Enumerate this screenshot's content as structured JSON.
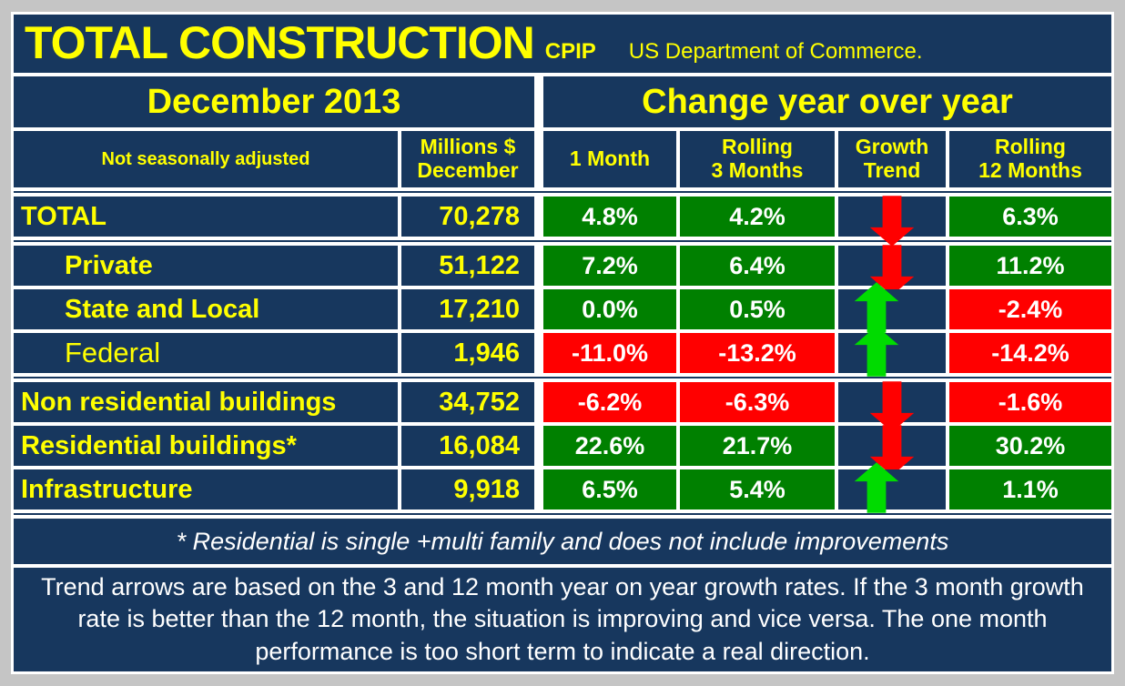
{
  "colors": {
    "background": "#C5C5C5",
    "panel": "#17375E",
    "border": "#FFFFFF",
    "accent_text": "#FFFF00",
    "positive": "#008000",
    "negative": "#FF0000",
    "arrow_up": "#00DB00",
    "arrow_down": "#FF0000",
    "body_text": "#FFFFFF"
  },
  "header": {
    "title": "TOTAL CONSTRUCTION",
    "source_tag": "CPIP",
    "source_org": "US Department of Commerce."
  },
  "sections": {
    "period": "December 2013",
    "change": "Change year over year"
  },
  "columns": {
    "label": "Not seasonally adjusted",
    "millions_line1": "Millions $",
    "millions_line2": "December",
    "m1": "1 Month",
    "r3_line1": "Rolling",
    "r3_line2": "3 Months",
    "trend_line1": "Growth",
    "trend_line2": "Trend",
    "r12_line1": "Rolling",
    "r12_line2": "12 Months"
  },
  "rows": [
    {
      "label": "TOTAL",
      "millions": "70,278",
      "m1": "4.8%",
      "m1_color": "green",
      "r3": "4.2%",
      "r3_color": "green",
      "trend": "down",
      "r12": "6.3%",
      "r12_color": "green"
    },
    {
      "label": "Private",
      "millions": "51,122",
      "m1": "7.2%",
      "m1_color": "green",
      "r3": "6.4%",
      "r3_color": "green",
      "trend": "down",
      "r12": "11.2%",
      "r12_color": "green"
    },
    {
      "label": "State and Local",
      "millions": "17,210",
      "m1": "0.0%",
      "m1_color": "green",
      "r3": "0.5%",
      "r3_color": "green",
      "trend": "up",
      "r12": "-2.4%",
      "r12_color": "red"
    },
    {
      "label": "Federal",
      "millions": "1,946",
      "m1": "-11.0%",
      "m1_color": "red",
      "r3": "-13.2%",
      "r3_color": "red",
      "trend": "up",
      "r12": "-14.2%",
      "r12_color": "red"
    },
    {
      "label": "Non residential buildings",
      "millions": "34,752",
      "m1": "-6.2%",
      "m1_color": "red",
      "r3": "-6.3%",
      "r3_color": "red",
      "trend": "down",
      "r12": "-1.6%",
      "r12_color": "red"
    },
    {
      "label": "Residential buildings*",
      "millions": "16,084",
      "m1": "22.6%",
      "m1_color": "green",
      "r3": "21.7%",
      "r3_color": "green",
      "trend": "down",
      "r12": "30.2%",
      "r12_color": "green"
    },
    {
      "label": "Infrastructure",
      "millions": "9,918",
      "m1": "6.5%",
      "m1_color": "green",
      "r3": "5.4%",
      "r3_color": "green",
      "trend": "up",
      "r12": "1.1%",
      "r12_color": "green"
    }
  ],
  "notes": {
    "footnote": "* Residential is single +multi family and does not include improvements",
    "trend_explainer": "Trend arrows are based on the 3 and 12 month year on year growth rates. If the 3 month growth rate is better than the 12 month, the situation is improving and vice versa. The one month performance is too short term to indicate a real direction."
  },
  "chart_data": {
    "type": "table",
    "title": "TOTAL CONSTRUCTION CPIP — US Department of Commerce — December 2013",
    "columns": [
      "Not seasonally adjusted",
      "Millions $ December",
      "1 Month",
      "Rolling 3 Months",
      "Growth Trend",
      "Rolling 12 Months"
    ],
    "rows": [
      [
        "TOTAL",
        70278,
        "4.8%",
        "4.2%",
        "down",
        "6.3%"
      ],
      [
        "Private",
        51122,
        "7.2%",
        "6.4%",
        "down",
        "11.2%"
      ],
      [
        "State and Local",
        17210,
        "0.0%",
        "0.5%",
        "up",
        "-2.4%"
      ],
      [
        "Federal",
        1946,
        "-11.0%",
        "-13.2%",
        "up",
        "-14.2%"
      ],
      [
        "Non residential buildings",
        34752,
        "-6.2%",
        "-6.3%",
        "down",
        "-1.6%"
      ],
      [
        "Residential buildings*",
        16084,
        "22.6%",
        "21.7%",
        "down",
        "30.2%"
      ],
      [
        "Infrastructure",
        9918,
        "6.5%",
        "5.4%",
        "up",
        "1.1%"
      ]
    ],
    "legend": {
      "green_cell": "positive / favorable",
      "red_cell": "negative / unfavorable",
      "up_arrow": "improving trend",
      "down_arrow": "worsening trend"
    }
  }
}
